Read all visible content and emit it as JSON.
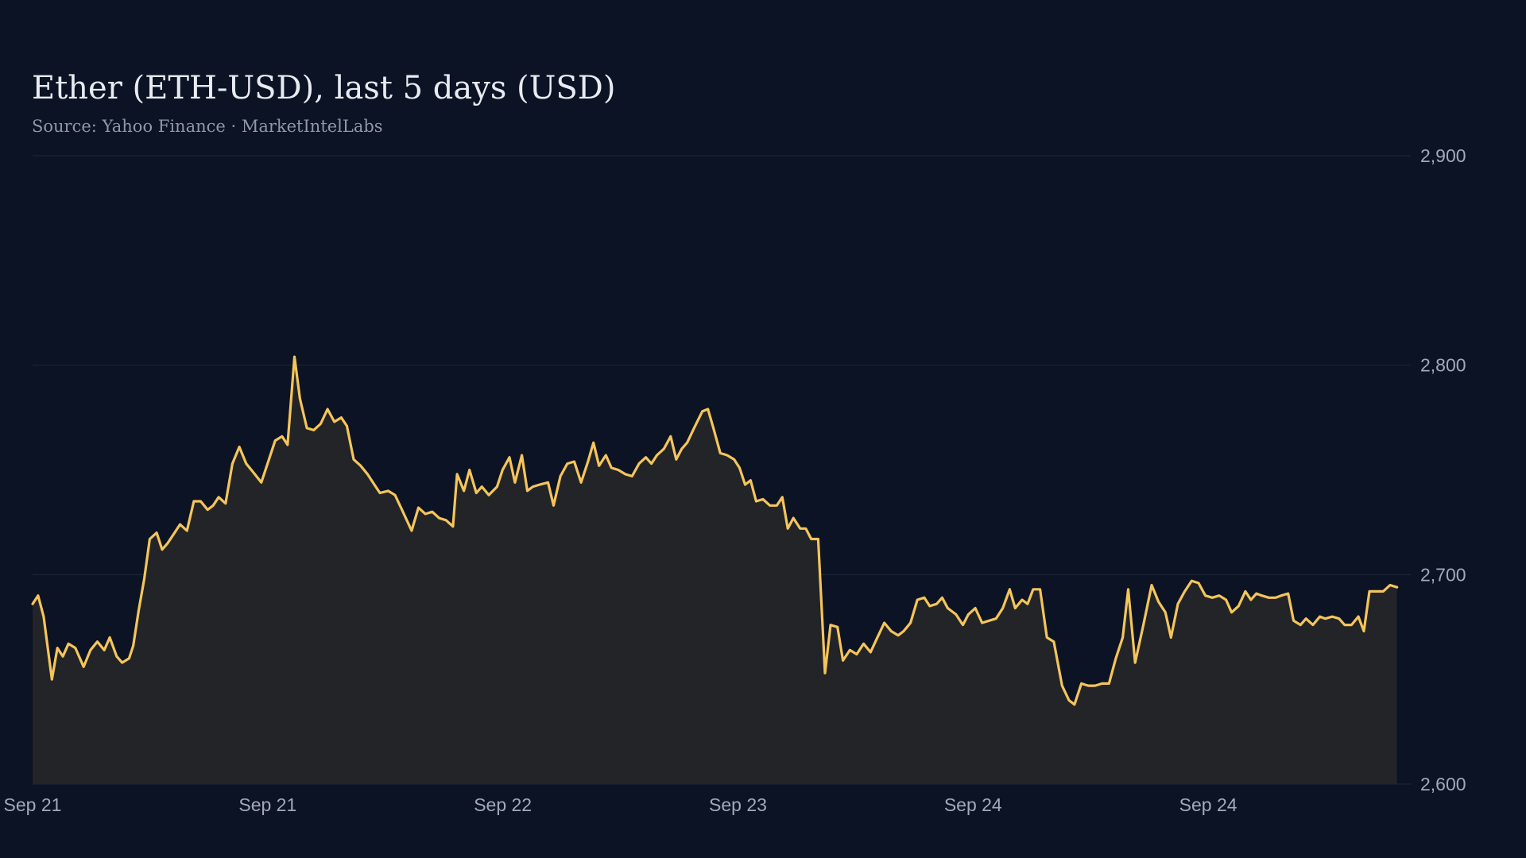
{
  "header": {
    "title": "Ether (ETH-USD), last 5 days (USD)",
    "subtitle": "Source: Yahoo Finance · MarketIntelLabs"
  },
  "colors": {
    "background": "#0c1324",
    "line": "#f5c55a",
    "area": "#222428",
    "grid": "#1f2836",
    "tick_text": "#a2a9b8"
  },
  "chart_data": {
    "type": "area",
    "title": "Ether (ETH-USD), last 5 days (USD)",
    "subtitle": "Source: Yahoo Finance · MarketIntelLabs",
    "y_axis_position": "right",
    "grid": "horizontal",
    "ylim": [
      2600,
      2900
    ],
    "yticks": [
      {
        "value": 2600,
        "label": "2,600"
      },
      {
        "value": 2700,
        "label": "2,700"
      },
      {
        "value": 2800,
        "label": "2,800"
      },
      {
        "value": 2900,
        "label": "2,900"
      }
    ],
    "xlim": [
      0,
      1000
    ],
    "xticks": [
      {
        "x": 0,
        "label": "Sep 21"
      },
      {
        "x": 170.6,
        "label": "Sep 21"
      },
      {
        "x": 341.2,
        "label": "Sep 22"
      },
      {
        "x": 511.8,
        "label": "Sep 23"
      },
      {
        "x": 682.4,
        "label": "Sep 24"
      },
      {
        "x": 853,
        "label": "Sep 24"
      }
    ],
    "series": [
      {
        "values": [
          [
            0,
            2686
          ],
          [
            4,
            2690
          ],
          [
            8,
            2680
          ],
          [
            14,
            2650
          ],
          [
            18,
            2665
          ],
          [
            22,
            2661
          ],
          [
            26,
            2667
          ],
          [
            31,
            2665
          ],
          [
            37,
            2656
          ],
          [
            42,
            2664
          ],
          [
            47,
            2668
          ],
          [
            52,
            2664
          ],
          [
            56,
            2670
          ],
          [
            61,
            2661
          ],
          [
            65,
            2658
          ],
          [
            70,
            2660
          ],
          [
            73,
            2666
          ],
          [
            77,
            2683
          ],
          [
            81,
            2698
          ],
          [
            85,
            2717
          ],
          [
            90,
            2720
          ],
          [
            94,
            2712
          ],
          [
            98,
            2715
          ],
          [
            102,
            2719
          ],
          [
            107,
            2724
          ],
          [
            112,
            2721
          ],
          [
            117,
            2735
          ],
          [
            122,
            2735
          ],
          [
            127,
            2731
          ],
          [
            131,
            2733
          ],
          [
            135,
            2737
          ],
          [
            140,
            2734
          ],
          [
            145,
            2753
          ],
          [
            150,
            2761
          ],
          [
            155,
            2753
          ],
          [
            160,
            2749
          ],
          [
            166,
            2744
          ],
          [
            171,
            2754
          ],
          [
            176,
            2764
          ],
          [
            181,
            2766
          ],
          [
            185,
            2762
          ],
          [
            190,
            2804
          ],
          [
            194,
            2784
          ],
          [
            199,
            2770
          ],
          [
            204,
            2769
          ],
          [
            209,
            2772
          ],
          [
            214,
            2779
          ],
          [
            219,
            2773
          ],
          [
            224,
            2775
          ],
          [
            228,
            2771
          ],
          [
            233,
            2755
          ],
          [
            238,
            2752
          ],
          [
            243,
            2748
          ],
          [
            248,
            2743
          ],
          [
            252,
            2739
          ],
          [
            258,
            2740
          ],
          [
            263,
            2738
          ],
          [
            268,
            2731
          ],
          [
            275,
            2721
          ],
          [
            280,
            2732
          ],
          [
            285,
            2729
          ],
          [
            290,
            2730
          ],
          [
            295,
            2727
          ],
          [
            300,
            2726
          ],
          [
            305,
            2723
          ],
          [
            308,
            2748
          ],
          [
            313,
            2740
          ],
          [
            317,
            2750
          ],
          [
            322,
            2739
          ],
          [
            326,
            2742
          ],
          [
            331,
            2738
          ],
          [
            337,
            2742
          ],
          [
            341,
            2750
          ],
          [
            346,
            2756
          ],
          [
            350,
            2744
          ],
          [
            355,
            2757
          ],
          [
            359,
            2740
          ],
          [
            363,
            2742
          ],
          [
            368,
            2743
          ],
          [
            374,
            2744
          ],
          [
            378,
            2733
          ],
          [
            383,
            2747
          ],
          [
            388,
            2753
          ],
          [
            393,
            2754
          ],
          [
            398,
            2744
          ],
          [
            403,
            2754
          ],
          [
            407,
            2763
          ],
          [
            411,
            2752
          ],
          [
            416,
            2757
          ],
          [
            420,
            2751
          ],
          [
            425,
            2750
          ],
          [
            430,
            2748
          ],
          [
            435,
            2747
          ],
          [
            440,
            2753
          ],
          [
            445,
            2756
          ],
          [
            449,
            2753
          ],
          [
            453,
            2757
          ],
          [
            458,
            2760
          ],
          [
            463,
            2766
          ],
          [
            467,
            2755
          ],
          [
            471,
            2760
          ],
          [
            475,
            2763
          ],
          [
            480,
            2770
          ],
          [
            486,
            2778
          ],
          [
            490,
            2779
          ],
          [
            494,
            2770
          ],
          [
            499,
            2758
          ],
          [
            504,
            2757
          ],
          [
            509,
            2755
          ],
          [
            513,
            2751
          ],
          [
            517,
            2743
          ],
          [
            521,
            2745
          ],
          [
            525,
            2735
          ],
          [
            530,
            2736
          ],
          [
            535,
            2733
          ],
          [
            540,
            2733
          ],
          [
            544,
            2737
          ],
          [
            548,
            2722
          ],
          [
            552,
            2727
          ],
          [
            557,
            2722
          ],
          [
            561,
            2722
          ],
          [
            565,
            2717
          ],
          [
            570,
            2717
          ],
          [
            575,
            2653
          ],
          [
            579,
            2676
          ],
          [
            584,
            2675
          ],
          [
            588,
            2659
          ],
          [
            593,
            2664
          ],
          [
            598,
            2662
          ],
          [
            603,
            2667
          ],
          [
            608,
            2663
          ],
          [
            613,
            2670
          ],
          [
            618,
            2677
          ],
          [
            623,
            2673
          ],
          [
            628,
            2671
          ],
          [
            632,
            2673
          ],
          [
            637,
            2677
          ],
          [
            642,
            2688
          ],
          [
            647,
            2689
          ],
          [
            651,
            2685
          ],
          [
            656,
            2686
          ],
          [
            660,
            2689
          ],
          [
            664,
            2684
          ],
          [
            670,
            2681
          ],
          [
            675,
            2676
          ],
          [
            679,
            2681
          ],
          [
            684,
            2684
          ],
          [
            689,
            2677
          ],
          [
            694,
            2678
          ],
          [
            699,
            2679
          ],
          [
            704,
            2684
          ],
          [
            709,
            2693
          ],
          [
            713,
            2684
          ],
          [
            718,
            2688
          ],
          [
            722,
            2686
          ],
          [
            726,
            2693
          ],
          [
            731,
            2693
          ],
          [
            736,
            2670
          ],
          [
            741,
            2668
          ],
          [
            747,
            2647
          ],
          [
            752,
            2640
          ],
          [
            756,
            2638
          ],
          [
            761,
            2648
          ],
          [
            766,
            2647
          ],
          [
            771,
            2647
          ],
          [
            776,
            2648
          ],
          [
            781,
            2648
          ],
          [
            786,
            2660
          ],
          [
            791,
            2670
          ],
          [
            795,
            2693
          ],
          [
            800,
            2658
          ],
          [
            806,
            2676
          ],
          [
            812,
            2695
          ],
          [
            817,
            2687
          ],
          [
            822,
            2682
          ],
          [
            826,
            2670
          ],
          [
            831,
            2686
          ],
          [
            836,
            2692
          ],
          [
            841,
            2697
          ],
          [
            846,
            2696
          ],
          [
            851,
            2690
          ],
          [
            856,
            2689
          ],
          [
            861,
            2690
          ],
          [
            866,
            2688
          ],
          [
            870,
            2682
          ],
          [
            875,
            2685
          ],
          [
            880,
            2692
          ],
          [
            884,
            2688
          ],
          [
            888,
            2691
          ],
          [
            892,
            2690
          ],
          [
            897,
            2689
          ],
          [
            902,
            2689
          ],
          [
            906,
            2690
          ],
          [
            911,
            2691
          ],
          [
            915,
            2678
          ],
          [
            920,
            2676
          ],
          [
            924,
            2679
          ],
          [
            929,
            2676
          ],
          [
            934,
            2680
          ],
          [
            938,
            2679
          ],
          [
            943,
            2680
          ],
          [
            948,
            2679
          ],
          [
            952,
            2676
          ],
          [
            957,
            2676
          ],
          [
            962,
            2680
          ],
          [
            966,
            2673
          ],
          [
            970,
            2692
          ],
          [
            975,
            2692
          ],
          [
            980,
            2692
          ],
          [
            985,
            2695
          ],
          [
            990,
            2694
          ]
        ]
      }
    ]
  }
}
